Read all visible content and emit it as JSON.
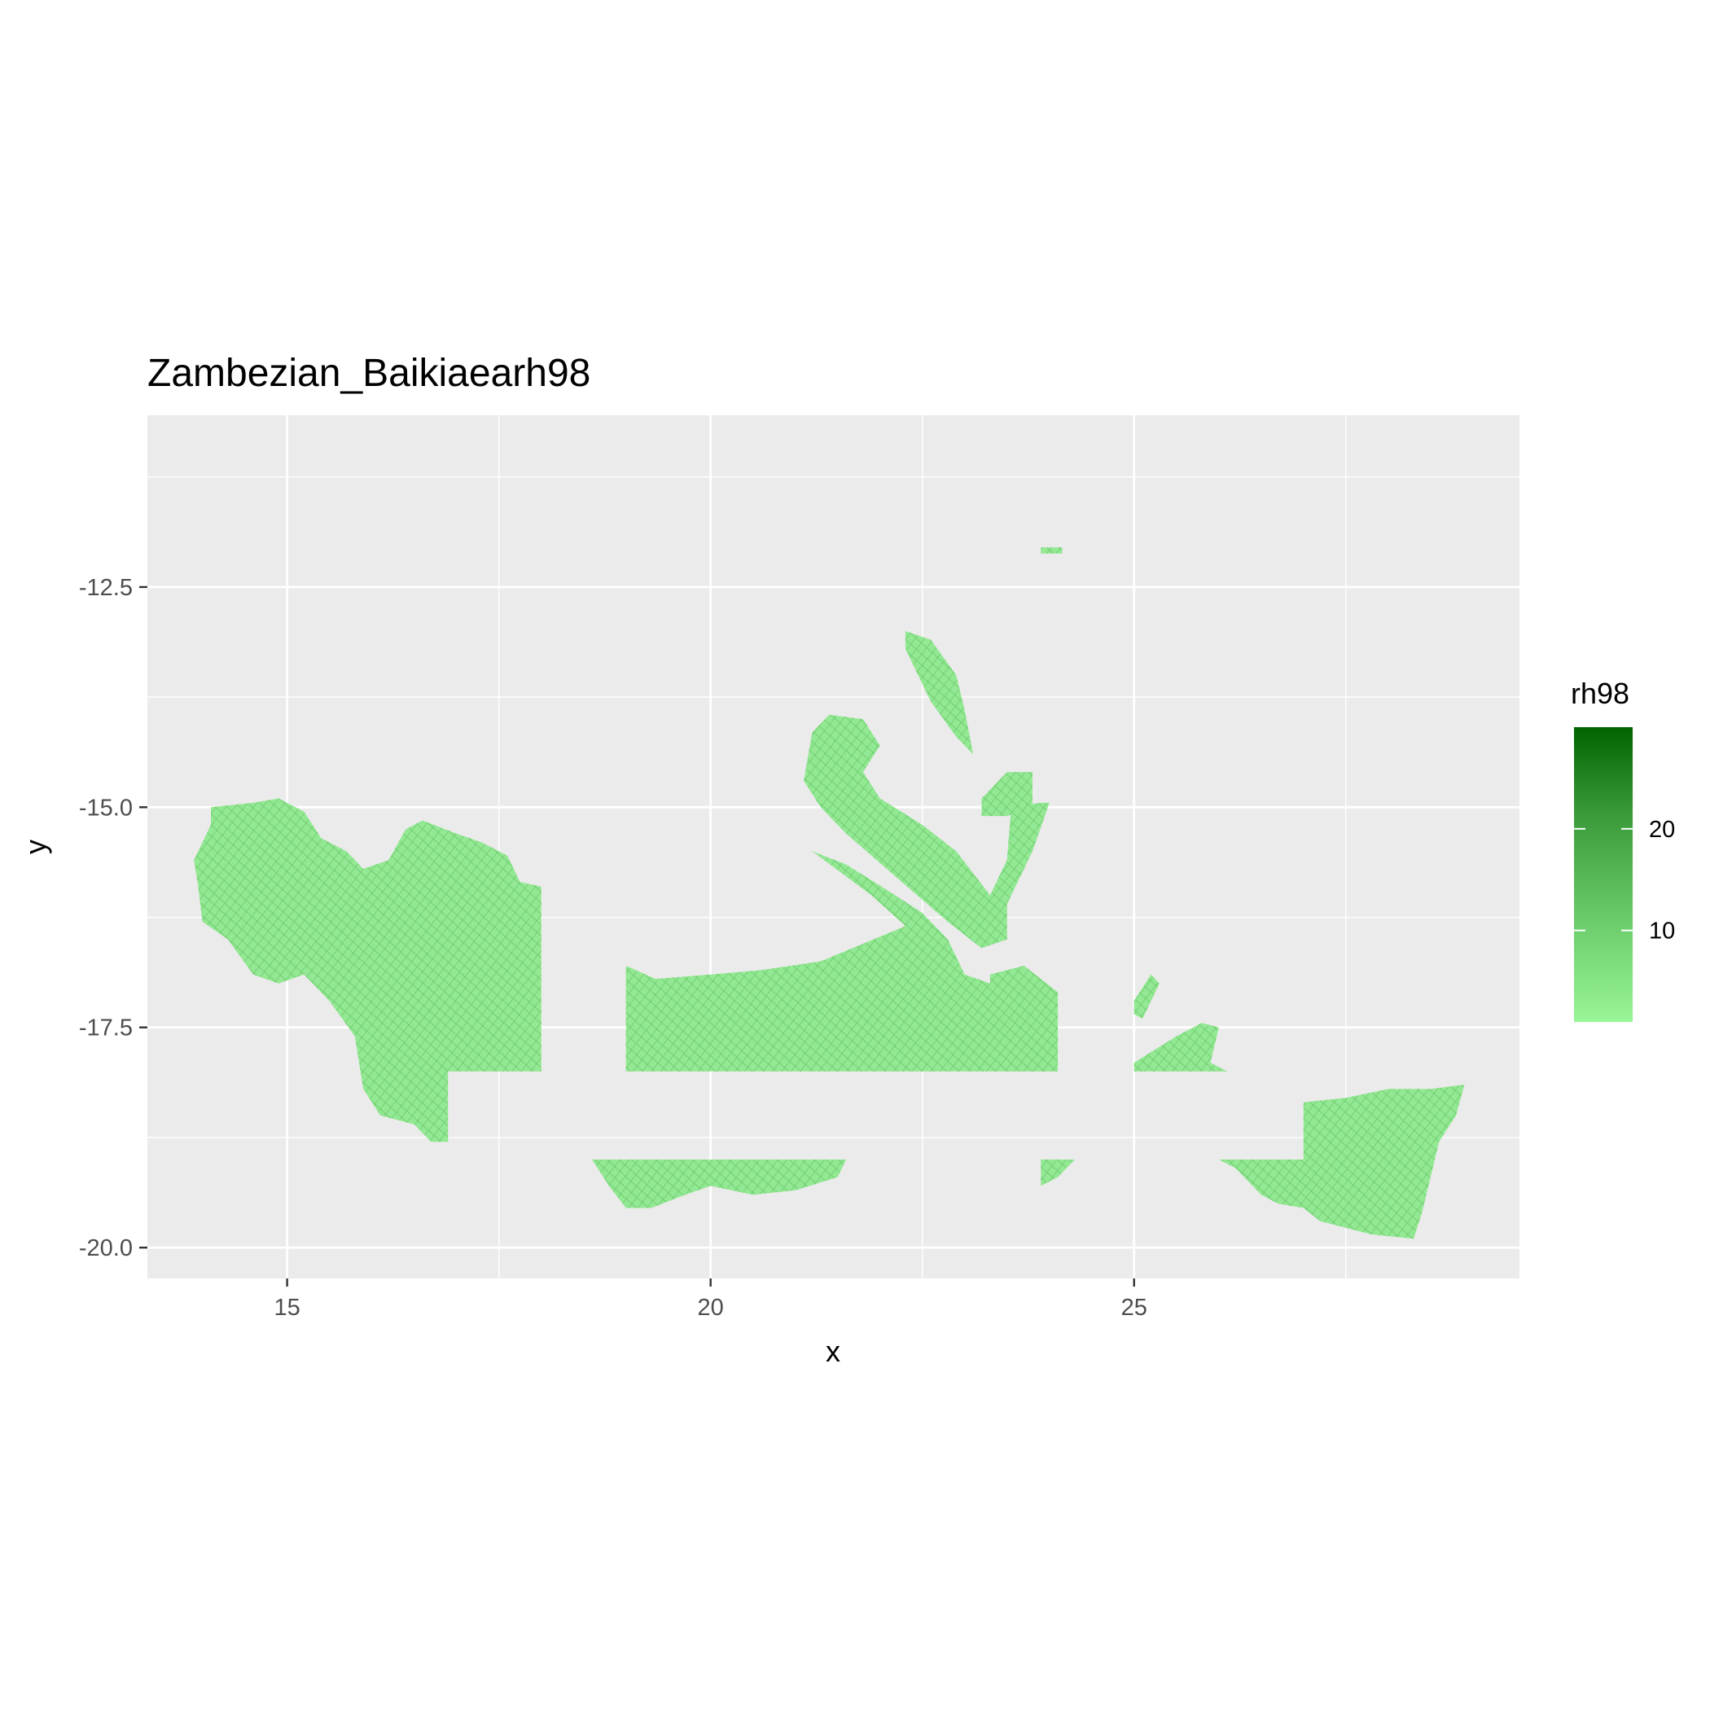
{
  "chart_data": {
    "type": "heatmap",
    "title": "Zambezian_Baikiaearh98",
    "xlabel": "x",
    "ylabel": "y",
    "xlim": [
      13.35,
      29.55
    ],
    "ylim": [
      -20.35,
      -10.55
    ],
    "x_ticks": [
      15,
      20,
      25
    ],
    "y_ticks": [
      -12.5,
      -15.0,
      -17.5,
      -20.0
    ],
    "x_tick_labels": [
      "15",
      "20",
      "25"
    ],
    "y_tick_labels": [
      "-12.5",
      "-15.0",
      "-17.5",
      "-20.0"
    ],
    "grid": true,
    "legend": {
      "title": "rh98",
      "position": "right",
      "low": 1,
      "high": 30,
      "breaks": [
        10,
        20
      ],
      "break_labels": [
        "10",
        "20"
      ],
      "color_low": "#98F598",
      "color_high": "#006400"
    },
    "panel_background": "#EBEBEB",
    "typical_value": 9,
    "regions": [
      {
        "name": "west-block",
        "polygon": [
          [
            14.1,
            -15.0
          ],
          [
            14.6,
            -14.95
          ],
          [
            14.9,
            -14.9
          ],
          [
            15.2,
            -15.05
          ],
          [
            15.4,
            -15.35
          ],
          [
            15.7,
            -15.5
          ],
          [
            15.9,
            -15.7
          ],
          [
            16.2,
            -15.6
          ],
          [
            16.4,
            -15.25
          ],
          [
            16.6,
            -15.15
          ],
          [
            17.0,
            -15.3
          ],
          [
            17.3,
            -15.4
          ],
          [
            17.6,
            -15.55
          ],
          [
            17.75,
            -15.85
          ],
          [
            18.0,
            -15.9
          ],
          [
            18.0,
            -18.0
          ],
          [
            16.9,
            -18.0
          ],
          [
            16.9,
            -18.8
          ],
          [
            16.7,
            -18.8
          ],
          [
            16.5,
            -18.6
          ],
          [
            16.1,
            -18.5
          ],
          [
            15.9,
            -18.2
          ],
          [
            15.8,
            -17.6
          ],
          [
            15.5,
            -17.2
          ],
          [
            15.2,
            -16.9
          ],
          [
            14.9,
            -17.0
          ],
          [
            14.6,
            -16.9
          ],
          [
            14.3,
            -16.5
          ],
          [
            14.0,
            -16.3
          ],
          [
            13.95,
            -15.9
          ],
          [
            13.9,
            -15.6
          ],
          [
            14.0,
            -15.4
          ],
          [
            14.1,
            -15.2
          ]
        ]
      },
      {
        "name": "central-block",
        "polygon": [
          [
            19.0,
            -16.8
          ],
          [
            19.35,
            -16.95
          ],
          [
            20.0,
            -16.9
          ],
          [
            20.6,
            -16.85
          ],
          [
            21.3,
            -16.75
          ],
          [
            21.8,
            -16.55
          ],
          [
            22.3,
            -16.35
          ],
          [
            21.9,
            -16.0
          ],
          [
            21.2,
            -15.5
          ],
          [
            21.6,
            -15.65
          ],
          [
            22.1,
            -15.95
          ],
          [
            22.5,
            -16.2
          ],
          [
            22.8,
            -16.5
          ],
          [
            23.0,
            -16.9
          ],
          [
            23.3,
            -17.0
          ],
          [
            23.3,
            -16.9
          ],
          [
            23.7,
            -16.8
          ],
          [
            24.1,
            -17.1
          ],
          [
            24.1,
            -18.0
          ],
          [
            19.0,
            -18.0
          ]
        ]
      },
      {
        "name": "north-fan",
        "polygon": [
          [
            21.1,
            -14.7
          ],
          [
            21.2,
            -14.15
          ],
          [
            21.4,
            -13.95
          ],
          [
            21.8,
            -14.0
          ],
          [
            22.0,
            -14.3
          ],
          [
            21.8,
            -14.6
          ],
          [
            22.0,
            -14.9
          ],
          [
            22.5,
            -15.2
          ],
          [
            22.9,
            -15.5
          ],
          [
            23.3,
            -16.0
          ],
          [
            23.5,
            -15.6
          ],
          [
            23.55,
            -15.0
          ],
          [
            23.9,
            -14.95
          ],
          [
            24.0,
            -14.95
          ],
          [
            23.8,
            -15.5
          ],
          [
            23.5,
            -16.1
          ],
          [
            23.5,
            -16.5
          ],
          [
            23.2,
            -16.6
          ],
          [
            22.8,
            -16.3
          ],
          [
            22.2,
            -15.8
          ],
          [
            21.6,
            -15.3
          ],
          [
            21.3,
            -15.0
          ]
        ]
      },
      {
        "name": "north-strip",
        "polygon": [
          [
            22.3,
            -13.0
          ],
          [
            22.6,
            -13.1
          ],
          [
            22.9,
            -13.5
          ],
          [
            23.0,
            -13.9
          ],
          [
            23.1,
            -14.4
          ],
          [
            22.9,
            -14.2
          ],
          [
            22.6,
            -13.8
          ],
          [
            22.4,
            -13.4
          ],
          [
            22.3,
            -13.2
          ]
        ]
      },
      {
        "name": "mid-right-patch",
        "polygon": [
          [
            23.2,
            -14.9
          ],
          [
            23.5,
            -14.6
          ],
          [
            23.8,
            -14.6
          ],
          [
            23.8,
            -15.0
          ],
          [
            23.5,
            -15.1
          ],
          [
            23.2,
            -15.1
          ]
        ]
      },
      {
        "name": "south-strip",
        "polygon": [
          [
            18.6,
            -19.0
          ],
          [
            21.6,
            -19.0
          ],
          [
            21.5,
            -19.2
          ],
          [
            21.0,
            -19.35
          ],
          [
            20.5,
            -19.4
          ],
          [
            20.0,
            -19.3
          ],
          [
            19.7,
            -19.4
          ],
          [
            19.3,
            -19.55
          ],
          [
            19.0,
            -19.55
          ],
          [
            18.8,
            -19.3
          ]
        ]
      },
      {
        "name": "east-block",
        "polygon": [
          [
            27.0,
            -18.35
          ],
          [
            27.5,
            -18.3
          ],
          [
            28.0,
            -18.2
          ],
          [
            28.5,
            -18.2
          ],
          [
            28.9,
            -18.15
          ],
          [
            28.8,
            -18.5
          ],
          [
            28.6,
            -18.8
          ],
          [
            28.5,
            -19.2
          ],
          [
            28.4,
            -19.6
          ],
          [
            28.3,
            -19.9
          ],
          [
            27.8,
            -19.85
          ],
          [
            27.2,
            -19.7
          ],
          [
            27.0,
            -19.55
          ],
          [
            26.7,
            -19.5
          ],
          [
            26.5,
            -19.4
          ],
          [
            26.2,
            -19.1
          ],
          [
            26.0,
            -19.0
          ],
          [
            27.0,
            -19.0
          ]
        ]
      },
      {
        "name": "east-small-patch",
        "polygon": [
          [
            25.0,
            -17.9
          ],
          [
            25.5,
            -17.6
          ],
          [
            25.8,
            -17.45
          ],
          [
            26.0,
            -17.5
          ],
          [
            25.9,
            -17.9
          ],
          [
            26.1,
            -18.0
          ],
          [
            25.0,
            -18.0
          ]
        ]
      },
      {
        "name": "east-tiny-patch",
        "polygon": [
          [
            25.0,
            -17.2
          ],
          [
            25.2,
            -16.9
          ],
          [
            25.3,
            -17.0
          ],
          [
            25.1,
            -17.4
          ],
          [
            25.0,
            -17.35
          ]
        ]
      },
      {
        "name": "south-mid-fragment",
        "polygon": [
          [
            23.9,
            -19.0
          ],
          [
            24.3,
            -19.0
          ],
          [
            24.1,
            -19.2
          ],
          [
            23.9,
            -19.3
          ]
        ]
      },
      {
        "name": "north-speck",
        "polygon": [
          [
            23.9,
            -12.05
          ],
          [
            24.15,
            -12.05
          ],
          [
            24.15,
            -12.12
          ],
          [
            23.9,
            -12.12
          ]
        ]
      }
    ]
  }
}
